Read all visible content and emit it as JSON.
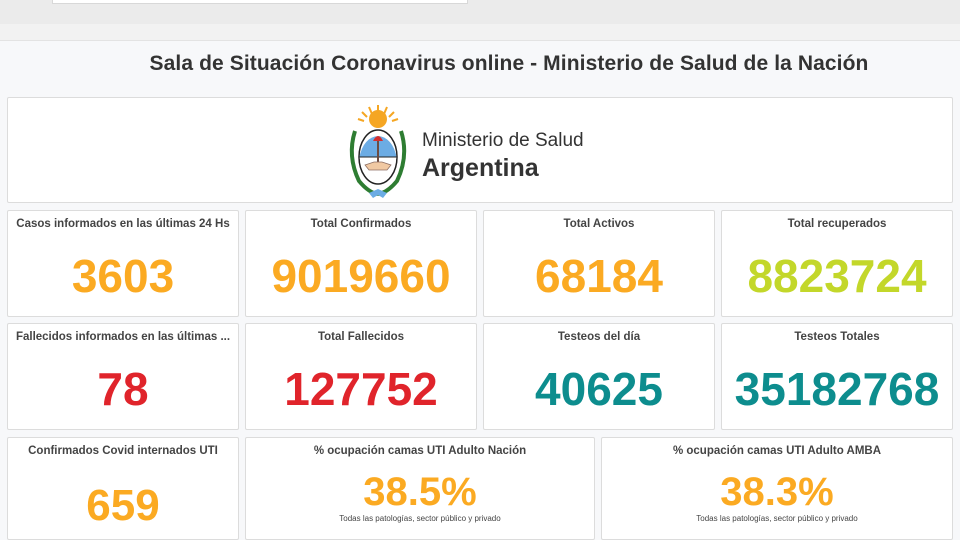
{
  "page": {
    "title": "Sala de Situación Coronavirus online - Ministerio de Salud de la Nación"
  },
  "logo": {
    "line1": "Ministerio de Salud",
    "line2": "Argentina"
  },
  "colors": {
    "orange": "#fbaa22",
    "green": "#c3d72a",
    "red": "#e0242b",
    "teal": "#0d8d8e"
  },
  "stats": [
    {
      "label": "Casos informados en las últimas 24 Hs",
      "value": "3603",
      "color": "#fbaa22"
    },
    {
      "label": "Total Confirmados",
      "value": "9019660",
      "color": "#fbaa22"
    },
    {
      "label": "Total Activos",
      "value": "68184",
      "color": "#fbaa22"
    },
    {
      "label": "Total recuperados",
      "value": "8823724",
      "color": "#c3d72a"
    },
    {
      "label": "Fallecidos informados en las últimas ...",
      "value": "78",
      "color": "#e0242b"
    },
    {
      "label": "Total Fallecidos",
      "value": "127752",
      "color": "#e0242b"
    },
    {
      "label": "Testeos del día",
      "value": "40625",
      "color": "#0d8d8e"
    },
    {
      "label": "Testeos Totales",
      "value": "35182768",
      "color": "#0d8d8e"
    },
    {
      "label": "Confirmados Covid internados UTI",
      "value": "659",
      "color": "#fbaa22"
    },
    {
      "label": "% ocupación camas UTI Adulto Nación",
      "value": "38.5%",
      "subtitle": "Todas las patologías, sector público y privado",
      "color": "#fbaa22"
    },
    {
      "label": "% ocupación camas UTI Adulto AMBA",
      "value": "38.3%",
      "subtitle": "Todas las patologías, sector público y privado",
      "color": "#fbaa22"
    }
  ]
}
